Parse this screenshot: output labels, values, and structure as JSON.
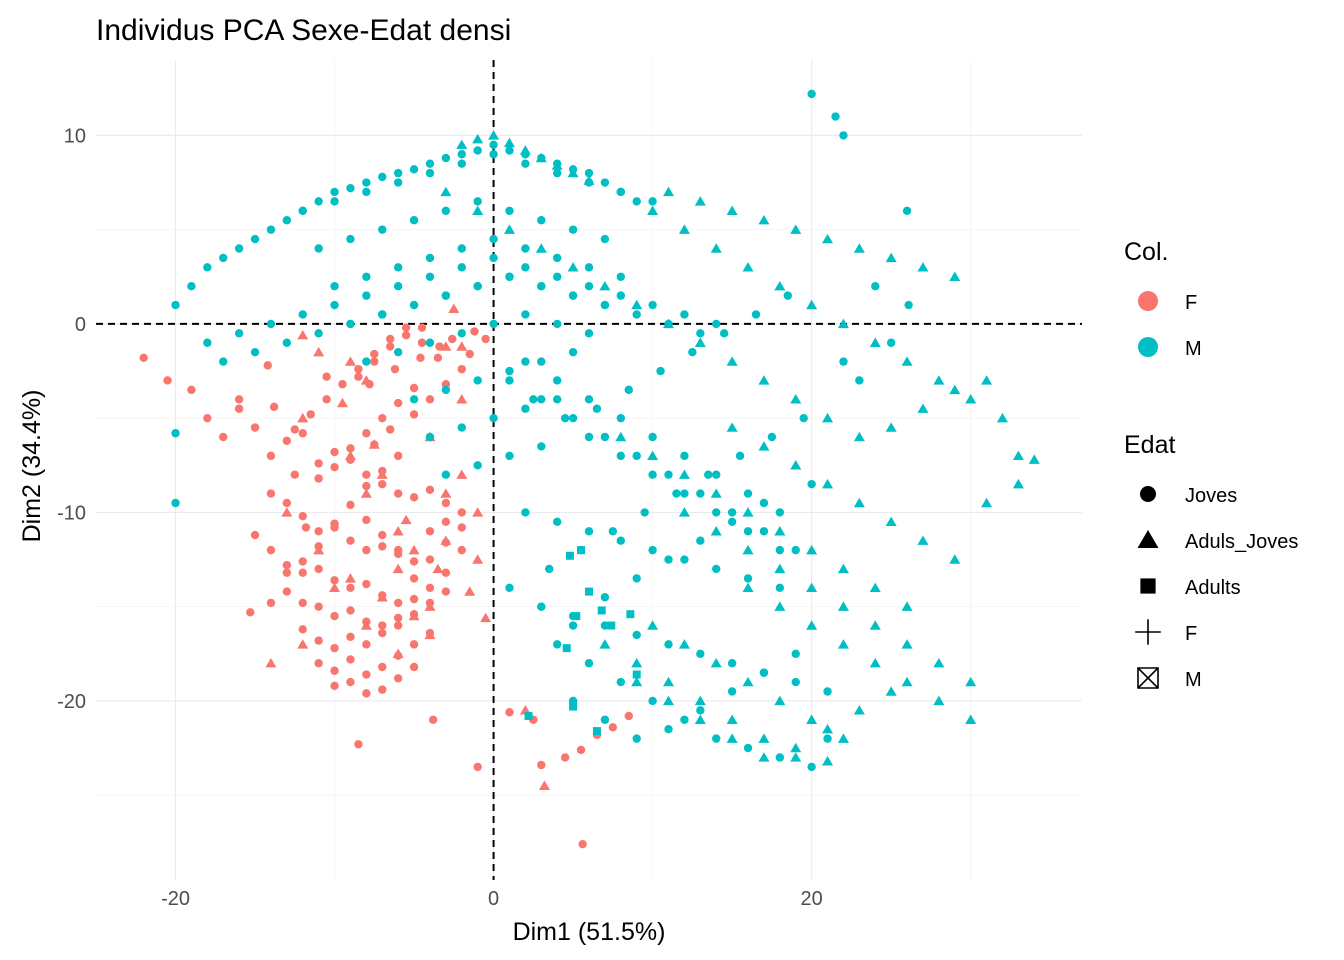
{
  "chart_data": {
    "type": "scatter",
    "title": "Individus PCA Sexe-Edat densi",
    "xlabel": "Dim1 (51.5%)",
    "ylabel": "Dim2 (34.4%)",
    "xlim": [
      -25,
      37
    ],
    "ylim": [
      -29.5,
      14
    ],
    "xticks": [
      -20,
      0,
      20
    ],
    "yticks": [
      10,
      0,
      -10,
      -20
    ],
    "xtick_labels": [
      "-20",
      "0",
      "20"
    ],
    "ytick_labels": [
      "10",
      "0",
      "-10",
      "-20"
    ],
    "reference_lines": {
      "x": 0,
      "y": 0
    },
    "legend": {
      "position": "right",
      "color": {
        "title": "Col.",
        "entries": [
          {
            "label": "F",
            "color": "#F8766D"
          },
          {
            "label": "M",
            "color": "#00BFC4"
          }
        ]
      },
      "shape": {
        "title": "Edat",
        "entries": [
          {
            "label": "Joves",
            "shape": "circle"
          },
          {
            "label": "Aduls_Joves",
            "shape": "triangle"
          },
          {
            "label": "Adults",
            "shape": "square"
          },
          {
            "label": "F",
            "shape": "plus"
          },
          {
            "label": "M",
            "shape": "boxed-x"
          }
        ]
      }
    },
    "series": [
      {
        "name": "F - Joves",
        "color": "#F8766D",
        "shape": "circle",
        "x": [
          -22,
          -20.5,
          -19,
          -18,
          -17,
          -16,
          -15,
          -14,
          -13,
          -12,
          -11,
          -10,
          -9,
          -8,
          -7,
          -6,
          -5,
          -4,
          -3,
          -2,
          -14,
          -13,
          -12,
          -11,
          -10,
          -9,
          -8,
          -7,
          -6,
          -5,
          -4,
          -3,
          -15,
          -14,
          -13,
          -12,
          -11,
          -10,
          -9,
          -8,
          -7,
          -6,
          -5,
          -4,
          -3,
          -2,
          -13,
          -12,
          -11,
          -10,
          -9,
          -8,
          -7,
          -6,
          -5,
          -4,
          -3,
          -2,
          -12,
          -11,
          -10,
          -9,
          -8,
          -7,
          -6,
          -5,
          -4,
          -3,
          -11,
          -10,
          -9,
          -8,
          -7,
          -6,
          -5,
          -4,
          -10,
          -9,
          -8,
          -7,
          -6,
          -5,
          -15.3,
          -14,
          -13,
          -12,
          -11,
          -10,
          -9,
          -8,
          -7,
          -6,
          -12.5,
          -11.5,
          -10.5,
          -9.5,
          -8.5,
          -7.5,
          -6.5,
          -5.5,
          -4.5,
          -3.5,
          -11,
          -10,
          -9,
          -8,
          -7,
          -6,
          -5,
          -8.5,
          -7.5,
          -6.5,
          -5.5,
          -4.5,
          -8,
          -7,
          -6,
          -13.8,
          -14.2,
          -8.5,
          -3.8,
          -1,
          1,
          2.5,
          3,
          4.5,
          5.5,
          6.5,
          7.5,
          8.5,
          5.6,
          -11.8,
          -12.5,
          -9,
          -7.5,
          -6.5,
          -5,
          -4,
          -3,
          -2,
          -1.5,
          -0.5,
          -16,
          -15,
          -10.5,
          -7.8,
          -6.2,
          -4.6,
          -3.4,
          -2.6,
          -1.2
        ],
        "y": [
          -1.8,
          -3,
          -3.5,
          -5,
          -6,
          -4,
          -5.5,
          -7,
          -6.2,
          -5.8,
          -7.4,
          -6.8,
          -7.2,
          -8,
          -8.5,
          -9,
          -9.2,
          -8.8,
          -9.5,
          -10,
          -9,
          -9.5,
          -10.2,
          -11,
          -10.8,
          -11.5,
          -12,
          -11.8,
          -12.2,
          -12.6,
          -11,
          -10.5,
          -11.2,
          -12,
          -12.8,
          -13.2,
          -13,
          -13.6,
          -14,
          -13.8,
          -14.4,
          -14.8,
          -13.5,
          -12.5,
          -11.6,
          -10.8,
          -14.2,
          -14.8,
          -15,
          -15.5,
          -15.2,
          -15.8,
          -16,
          -15.6,
          -14.6,
          -14,
          -13.2,
          -12,
          -16.2,
          -16.8,
          -17.2,
          -16.6,
          -17,
          -16.4,
          -16,
          -15.4,
          -14.8,
          -14.2,
          -18,
          -18.4,
          -17.8,
          -18.6,
          -18.2,
          -17.6,
          -17,
          -16.4,
          -19.2,
          -19,
          -19.6,
          -19.4,
          -18.8,
          -18.2,
          -15.3,
          -14.8,
          -13.2,
          -12.6,
          -11.8,
          -10.6,
          -9.6,
          -8.6,
          -7.8,
          -7,
          -5.6,
          -4.8,
          -4,
          -3.2,
          -2.4,
          -1.6,
          -0.8,
          -0.2,
          -1,
          -1.8,
          -8.2,
          -7.6,
          -6.6,
          -5.8,
          -5,
          -4.2,
          -3.4,
          -2.8,
          -2,
          -1.2,
          -0.6,
          -0.2,
          -10.4,
          -11.2,
          -12,
          -4.4,
          -2.2,
          -22.3,
          -21,
          -23.5,
          -20.6,
          -21,
          -23.4,
          -23,
          -22.6,
          -21.8,
          -21.4,
          -20.8,
          -27.6,
          -10.8,
          -8,
          -7.2,
          -6.4,
          -5.6,
          -4.8,
          -4,
          -3.2,
          -2.4,
          -1.6,
          -0.8,
          -4.5,
          -5.5,
          -2.8,
          -3.2,
          -2.4,
          -1.8,
          -1.2,
          -0.8,
          -0.4
        ]
      },
      {
        "name": "F - Aduls_Joves",
        "color": "#F8766D",
        "shape": "triangle",
        "x": [
          -12,
          -9,
          -8,
          -7,
          -6,
          -5,
          -4,
          -3,
          -2,
          -1,
          -10,
          -8,
          -6,
          -4,
          -2,
          -13,
          -11,
          -9,
          -7,
          -5,
          -3,
          -1,
          -14,
          -12,
          -6,
          -4,
          -2,
          3.2,
          2,
          -8,
          -9,
          -3,
          -2.5,
          -11,
          -12,
          -9.5,
          -7.5,
          -5.5,
          -3.5,
          -1.5,
          -0.5
        ],
        "y": [
          -5,
          -7,
          -9,
          -8,
          -11,
          -12,
          -6,
          -9,
          -4,
          -10,
          -14,
          -16,
          -13,
          -15,
          -8,
          -10,
          -12,
          -13.5,
          -14.5,
          -15.5,
          -11.5,
          -12.5,
          -18,
          -17,
          -17.5,
          -16.5,
          -1.2,
          -24.5,
          -20.5,
          -3,
          -2,
          -1.2,
          0.8,
          -1.5,
          -0.6,
          -4.2,
          -6.4,
          -10.4,
          -13,
          -14.2,
          -15.6
        ]
      },
      {
        "name": "M - Joves",
        "color": "#00BFC4",
        "shape": "circle",
        "x": [
          -20,
          -19,
          -18,
          -17,
          -16,
          -15,
          -14,
          -13,
          -12,
          -11,
          -10,
          -9,
          -8,
          -7,
          -6,
          -5,
          -4,
          -3,
          -2,
          -1,
          0,
          1,
          2,
          3,
          4,
          5,
          6,
          7,
          8,
          9,
          -18,
          -16,
          -14,
          -12,
          -10,
          -8,
          -6,
          -4,
          -2,
          0,
          2,
          4,
          6,
          8,
          10,
          12,
          14,
          -17,
          -15,
          -13,
          -11,
          -9,
          -7,
          -5,
          -3,
          -1,
          1,
          3,
          5,
          7,
          9,
          11,
          13,
          -12,
          -10,
          -8,
          -6,
          -4,
          -2,
          0,
          2,
          4,
          6,
          8,
          10,
          -11,
          -9,
          -7,
          -5,
          -3,
          -1,
          1,
          3,
          5,
          7,
          -10,
          -8,
          -6,
          -4,
          -2,
          0,
          2,
          4,
          6,
          8,
          -9,
          -7,
          -5,
          -3,
          -1,
          1,
          3,
          5,
          7,
          -8,
          -6,
          -4,
          -2,
          0,
          2,
          4,
          6,
          -5,
          -3,
          -1,
          1,
          3,
          5,
          -4,
          -2,
          0,
          2,
          4,
          -3,
          -1,
          1,
          3,
          2,
          4,
          6,
          8,
          10,
          12,
          14,
          16,
          18,
          3,
          5,
          7,
          9,
          11,
          13,
          15,
          17,
          19,
          21,
          4,
          6,
          8,
          10,
          12,
          14,
          16,
          18,
          20,
          5,
          7,
          9,
          11,
          13,
          15,
          17,
          19,
          6,
          8,
          10,
          12,
          14,
          16,
          18,
          1,
          3,
          5,
          7,
          9,
          11,
          13,
          15,
          17,
          19,
          2,
          4,
          6,
          8,
          10,
          12,
          14,
          16,
          18,
          1,
          3,
          5,
          7,
          9,
          11,
          13,
          15,
          17,
          20,
          2.5,
          4.5,
          6.5,
          8.5,
          10.5,
          12.5,
          14.5,
          16.5,
          18.5,
          3.5,
          5.5,
          7.5,
          9.5,
          11.5,
          13.5,
          15.5,
          17.5,
          19.5,
          20,
          21.5,
          22,
          26,
          -20,
          -20,
          21,
          22,
          23,
          25,
          26.1,
          24
        ],
        "y": [
          1,
          2,
          3,
          3.5,
          4,
          4.5,
          5,
          5.5,
          6,
          6.5,
          7,
          7.2,
          7.5,
          7.8,
          8,
          8.2,
          8.5,
          8.8,
          9,
          9.2,
          9.5,
          9.2,
          9,
          8.8,
          8.5,
          8.2,
          8,
          7.5,
          7,
          6.5,
          -1,
          -0.5,
          0,
          0.5,
          1,
          1.5,
          2,
          2.5,
          3,
          3.5,
          3,
          2.5,
          2,
          1.5,
          1,
          0.5,
          0,
          -2,
          -1.5,
          -1,
          -0.5,
          0,
          0.5,
          1,
          1.5,
          2,
          2.5,
          2,
          1.5,
          1,
          0.5,
          0,
          -0.5,
          6,
          6.5,
          7,
          7.5,
          8,
          8.5,
          9,
          8.5,
          8,
          7.5,
          7,
          6.5,
          4,
          4.5,
          5,
          5.5,
          6,
          6.5,
          6,
          5.5,
          5,
          4.5,
          2,
          2.5,
          3,
          3.5,
          4,
          4.5,
          4,
          3.5,
          3,
          2.5,
          0,
          0.5,
          1,
          1.5,
          2,
          2.5,
          2,
          1.5,
          1,
          -2,
          -1.5,
          -1,
          -0.5,
          0,
          0.5,
          0,
          -0.5,
          -4,
          -3.5,
          -3,
          -2.5,
          -2,
          -1.5,
          -6,
          -5.5,
          -5,
          -4.5,
          -4,
          -8,
          -7.5,
          -7,
          -6.5,
          -10,
          -10.5,
          -11,
          -11.5,
          -12,
          -12.5,
          -13,
          -13.5,
          -14,
          -15,
          -15.5,
          -16,
          -16.5,
          -17,
          -17.5,
          -18,
          -18.5,
          -19,
          -19.5,
          -17,
          -18,
          -19,
          -20,
          -21,
          -22,
          -22.5,
          -23,
          -23.5,
          -20,
          -21,
          -22,
          -21.5,
          -20.5,
          -19.5,
          -18.5,
          -17.5,
          -6,
          -7,
          -8,
          -9,
          -10,
          -11,
          -12,
          -3,
          -4,
          -5,
          -6,
          -7,
          -8,
          -9,
          -10,
          -11,
          -12,
          -2,
          -3,
          -4,
          -5,
          -6,
          -7,
          -8,
          -9,
          -10,
          -14,
          -15,
          -16,
          -14.5,
          -13.5,
          -12.5,
          -11.5,
          -10.5,
          -9.5,
          -8.5,
          -4,
          -5,
          -4.5,
          -3.5,
          -2.5,
          -1.5,
          -0.5,
          0.5,
          1.5,
          -13,
          -12,
          -11,
          -10,
          -9,
          -8,
          -7,
          -6,
          -5,
          12.2,
          11,
          10,
          6,
          -5.8,
          -9.5,
          -22,
          -2,
          -3,
          -1,
          1,
          2
        ]
      },
      {
        "name": "M - Aduls_Joves",
        "color": "#00BFC4",
        "shape": "triangle",
        "x": [
          -2,
          -1,
          0,
          1,
          2,
          3,
          4,
          5,
          6,
          -3,
          -1,
          1,
          3,
          5,
          7,
          9,
          11,
          13,
          15,
          17,
          19,
          21,
          23,
          25,
          27,
          29,
          31,
          33,
          10,
          12,
          14,
          16,
          18,
          20,
          22,
          24,
          26,
          28,
          30,
          32,
          34,
          15,
          17,
          19,
          21,
          23,
          25,
          27,
          29,
          31,
          33,
          16,
          18,
          20,
          22,
          24,
          26,
          28,
          30,
          12,
          14,
          16,
          18,
          20,
          22,
          24,
          26,
          28,
          30,
          11,
          13,
          15,
          17,
          19,
          21,
          23,
          25,
          27,
          29,
          8,
          10,
          12,
          14,
          16,
          18,
          20,
          22,
          24,
          26,
          9,
          11,
          13,
          15,
          17,
          19,
          21,
          23,
          25,
          10,
          12,
          14,
          16,
          18,
          20,
          22,
          7,
          9,
          11,
          13,
          15,
          17,
          19,
          21
        ],
        "y": [
          9.5,
          9.8,
          10,
          9.6,
          9.2,
          8.8,
          8.4,
          8,
          7.6,
          7,
          6,
          5,
          4,
          3,
          2,
          1,
          0,
          -1,
          -2,
          -3,
          -4,
          -5,
          -6,
          -5.5,
          -4.5,
          -3.5,
          -3,
          -7,
          6,
          5,
          4,
          3,
          2,
          1,
          0,
          -1,
          -2,
          -3,
          -4,
          -5,
          -7.2,
          -5.5,
          -6.5,
          -7.5,
          -8.5,
          -9.5,
          -10.5,
          -11.5,
          -12.5,
          -9.5,
          -8.5,
          -14,
          -15,
          -16,
          -17,
          -18,
          -19,
          -20,
          -21,
          -10,
          -11,
          -12,
          -13,
          -14,
          -15,
          -16,
          -17,
          -18,
          -19,
          7,
          6.5,
          6,
          5.5,
          5,
          4.5,
          4,
          3.5,
          3,
          2.5,
          -6,
          -7,
          -8,
          -9,
          -10,
          -11,
          -12,
          -13,
          -14,
          -15,
          -19,
          -20,
          -21,
          -22,
          -23,
          -22.5,
          -21.5,
          -20.5,
          -19.5,
          -16,
          -17,
          -18,
          -19,
          -20,
          -21,
          -22,
          -17,
          -18,
          -19,
          -20,
          -21,
          -22,
          -23,
          -23.2
        ]
      },
      {
        "name": "M - Adults",
        "color": "#00BFC4",
        "shape": "square",
        "x": [
          4.8,
          5.5,
          6,
          5.2,
          6.8,
          7.4,
          8.6,
          9,
          4.6,
          5,
          6.5,
          2.2
        ],
        "y": [
          -12.3,
          -12,
          -14.2,
          -15.5,
          -15.2,
          -16,
          -15.4,
          -18.6,
          -17.2,
          -20.3,
          -21.6,
          -20.8
        ]
      }
    ]
  }
}
